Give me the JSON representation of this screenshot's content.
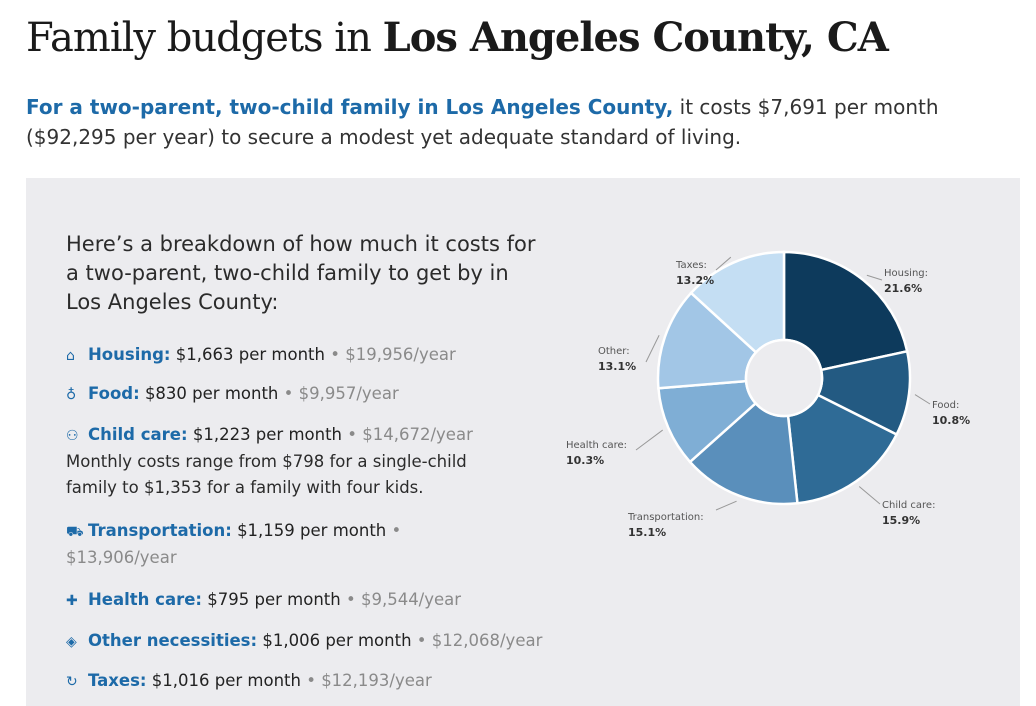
{
  "title": {
    "regular": "Family budgets in ",
    "bold": "Los Angeles County, CA"
  },
  "intro": {
    "highlight": "For a two-parent, two-child family in Los Angeles County,",
    "rest": " it costs $7,691 per month ($92,295 per year) to secure a modest yet adequate standard of living."
  },
  "panel": {
    "lead": "Here’s a breakdown of how much it costs for a two-parent, two-child family to get by in Los Angeles County:",
    "items": [
      {
        "icon": "house-icon",
        "glyph": "⌂",
        "label": "Housing:",
        "monthly": "$1,663 per month",
        "sep": " • ",
        "yearly": "$19,956/year"
      },
      {
        "icon": "apple-icon",
        "glyph": "♁",
        "label": "Food:",
        "monthly": "$830 per month",
        "sep": " • ",
        "yearly": "$9,957/year"
      },
      {
        "icon": "people-icon",
        "glyph": "⚇",
        "label": "Child care:",
        "monthly": "$1,223 per month",
        "sep": " • ",
        "yearly": "$14,672/year",
        "note": "Monthly costs range from $798 for a single-child family to $1,353 for a family with four kids."
      },
      {
        "icon": "bus-icon",
        "glyph": "⛟",
        "label": "Transportation:",
        "monthly": "$1,159 per month",
        "sep": " • ",
        "yearly": "$13,906/year"
      },
      {
        "icon": "cross-icon",
        "glyph": "✚",
        "label": "Health care:",
        "monthly": "$795 per month",
        "sep": " • ",
        "yearly": "$9,544/year"
      },
      {
        "icon": "tag-icon",
        "glyph": "◈",
        "label": "Other necessities:",
        "monthly": "$1,006 per month",
        "sep": " • ",
        "yearly": "$12,068/year"
      },
      {
        "icon": "taxes-icon",
        "glyph": "↻",
        "label": "Taxes:",
        "monthly": "$1,016 per month",
        "sep": " • ",
        "yearly": "$12,193/year"
      }
    ]
  },
  "chart_data": {
    "type": "pie",
    "donut": true,
    "categories": [
      "Housing",
      "Food",
      "Child care",
      "Transportation",
      "Health care",
      "Other",
      "Taxes"
    ],
    "values": [
      21.6,
      10.8,
      15.9,
      15.1,
      10.3,
      13.1,
      13.2
    ],
    "value_labels": [
      "21.6%",
      "10.8%",
      "15.9%",
      "15.1%",
      "10.3%",
      "13.1%",
      "13.2%"
    ],
    "colors": [
      "#0d3a5c",
      "#235a82",
      "#2f6b96",
      "#5a8fbb",
      "#7faed5",
      "#a2c6e6",
      "#c4def3"
    ]
  }
}
